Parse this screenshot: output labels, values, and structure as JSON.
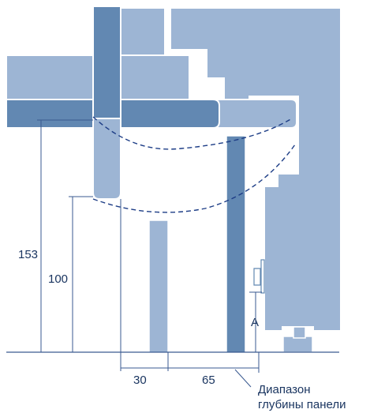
{
  "colors": {
    "light_part": "#9db5d4",
    "dark_part": "#6288b2",
    "outline": "#ffffff",
    "dimension_line": "#3a5a90",
    "dashed_arc": "#1d3d86",
    "text": "#1a3560"
  },
  "labels": {
    "dim_153": "153",
    "dim_100": "100",
    "dim_30": "30",
    "dim_65": "65",
    "dim_a": "A",
    "depth_line1": "Диапазон",
    "depth_line2": "глубины панели"
  }
}
